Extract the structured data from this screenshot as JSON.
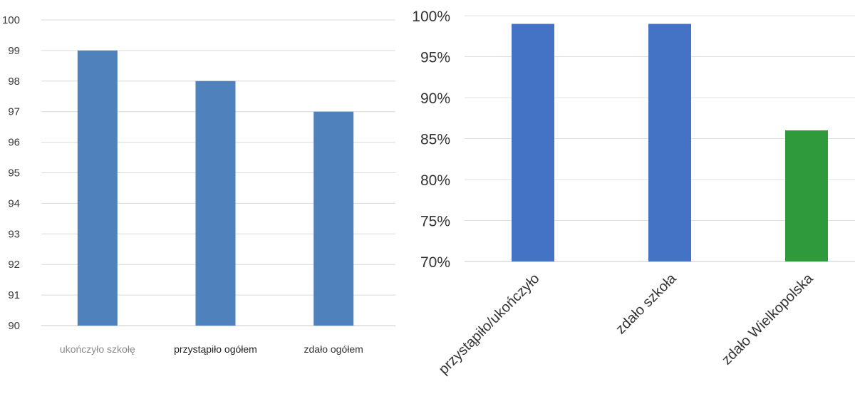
{
  "chart_data": [
    {
      "type": "bar",
      "categories": [
        "ukończyło szkołę",
        "przystąpiło ogółem",
        "zdało ogółem"
      ],
      "values": [
        99,
        98,
        97
      ],
      "ylim": [
        90,
        100
      ],
      "yticks": [
        "90",
        "91",
        "92",
        "93",
        "94",
        "95",
        "96",
        "97",
        "98",
        "99",
        "100"
      ],
      "grid": true,
      "bar_color": "#4f81bd"
    },
    {
      "type": "bar",
      "categories": [
        "przystąpiło/ukończyło",
        "zdało szkoła",
        "zdało Wielkopolska"
      ],
      "values": [
        0.99,
        0.99,
        0.86
      ],
      "bar_colors": [
        "#4472c4",
        "#4472c4",
        "#2e9a3b"
      ],
      "ylim": [
        0.7,
        1.0
      ],
      "yticks": [
        "70%",
        "75%",
        "80%",
        "85%",
        "90%",
        "95%",
        "100%"
      ],
      "grid": true
    }
  ]
}
